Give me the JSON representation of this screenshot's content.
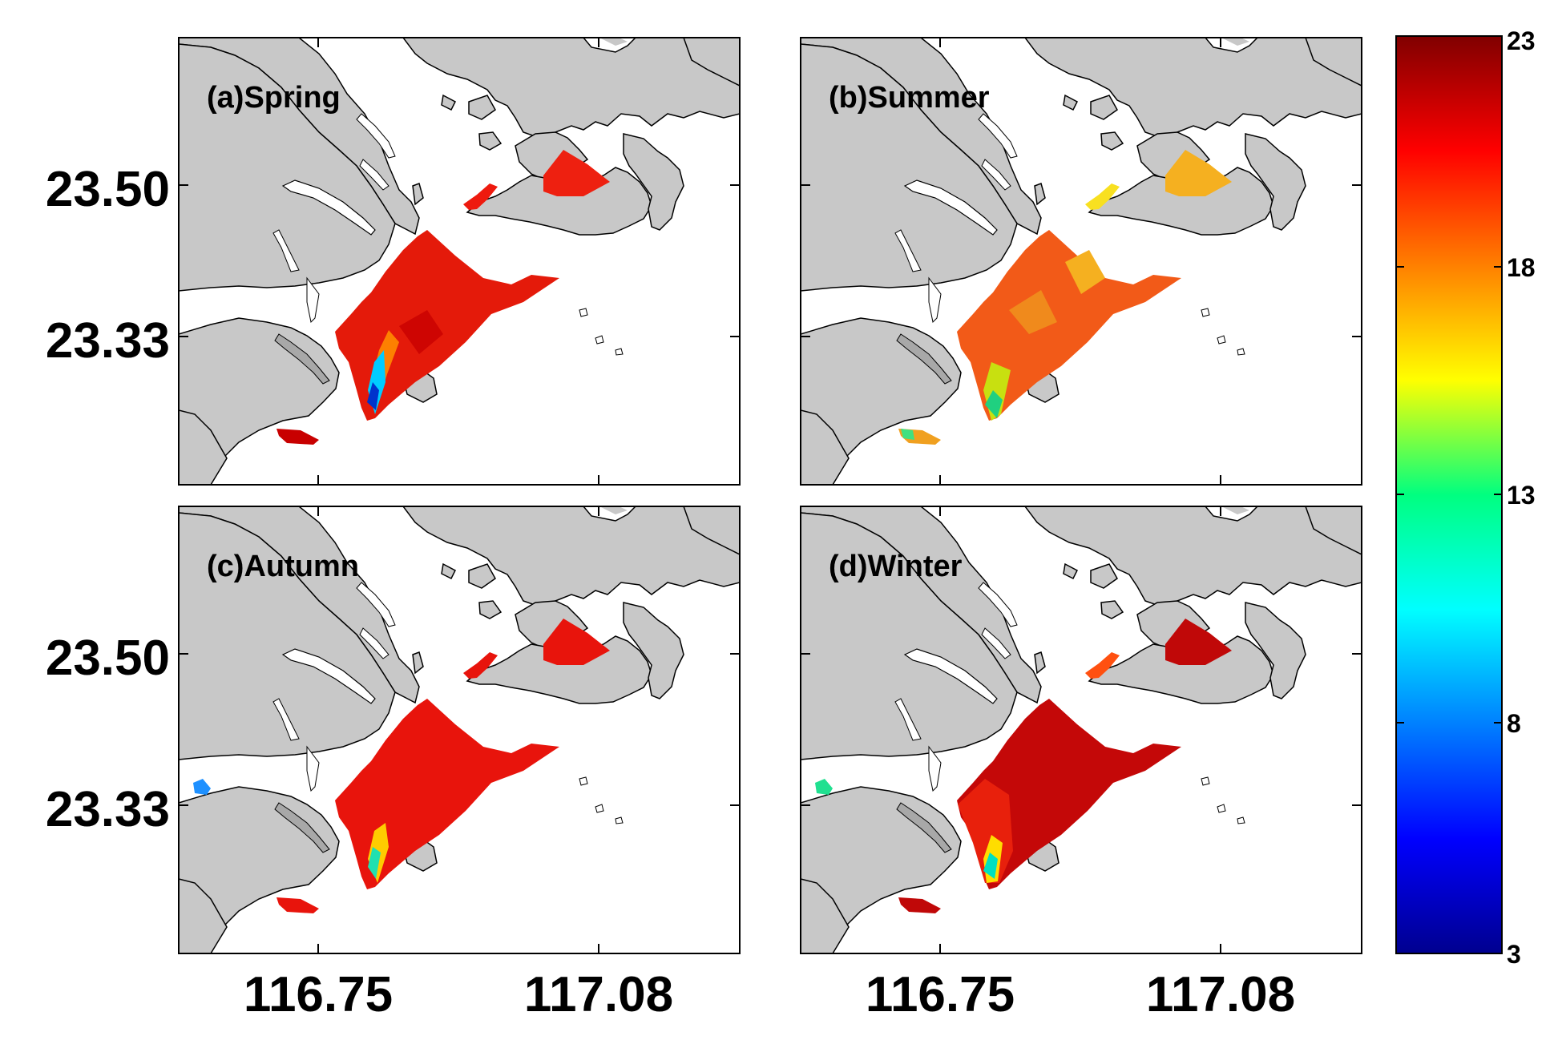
{
  "panels": [
    {
      "label": "(a)Spring"
    },
    {
      "label": "(b)Summer"
    },
    {
      "label": "(c)Autumn"
    },
    {
      "label": "(d)Winter"
    }
  ],
  "axes": {
    "y_ticks": [
      "23.50",
      "23.33"
    ],
    "x_ticks": [
      "116.75",
      "117.08"
    ]
  },
  "colorbar": {
    "min": 3,
    "max": 23,
    "tick_labels": [
      "23",
      "18",
      "13",
      "8",
      "3"
    ],
    "colormap": "jet"
  },
  "colors": {
    "land": "#c8c8c8",
    "coast": "#000000",
    "water": "#ffffff"
  }
}
